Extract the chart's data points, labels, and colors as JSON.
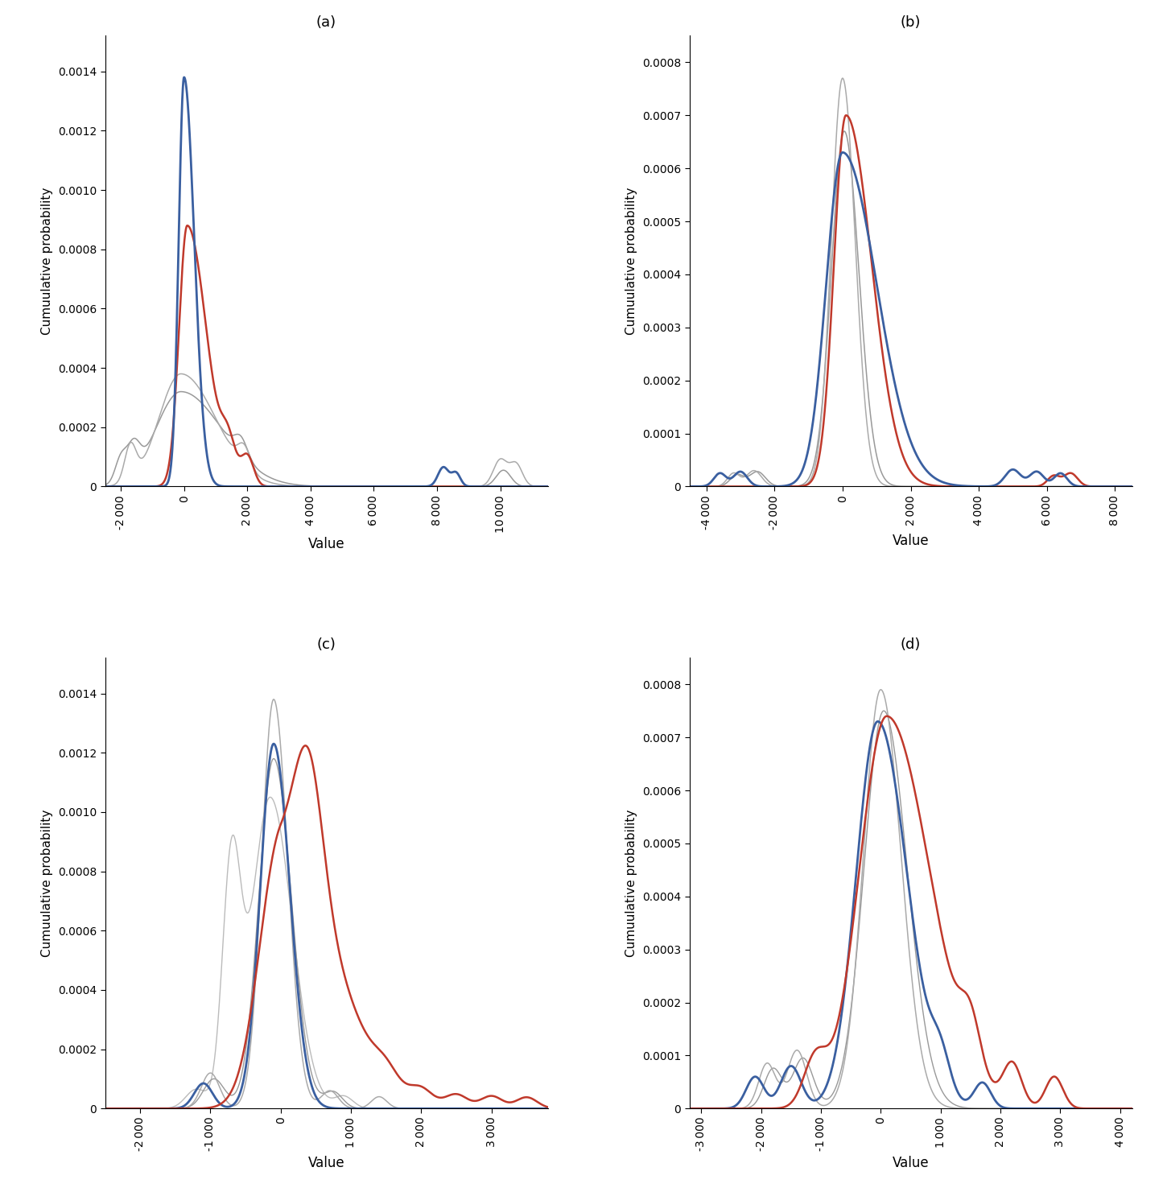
{
  "panel_labels": [
    "(a)",
    "(b)",
    "(c)",
    "(d)"
  ],
  "ylabel": "Cumuulative probability",
  "xlabel": "Value",
  "background_color": "#ffffff",
  "line_colors": {
    "blue": "#3a5fa0",
    "red": "#c0392b",
    "gray1": "#aaaaaa",
    "gray2": "#999999",
    "gray3": "#bbbbbb"
  },
  "panels": [
    {
      "id": "a",
      "xlim": [
        -2500,
        11500
      ],
      "ylim": [
        0,
        0.00152
      ],
      "xticks": [
        -2000,
        0,
        2000,
        4000,
        6000,
        8000,
        10000
      ],
      "yticks": [
        0,
        0.0002,
        0.0004,
        0.0006,
        0.0008,
        0.001,
        0.0012,
        0.0014
      ]
    },
    {
      "id": "b",
      "xlim": [
        -4500,
        8500
      ],
      "ylim": [
        0,
        0.00085
      ],
      "xticks": [
        -4000,
        -2000,
        0,
        2000,
        4000,
        6000,
        8000
      ],
      "yticks": [
        0,
        0.0001,
        0.0002,
        0.0003,
        0.0004,
        0.0005,
        0.0006,
        0.0007,
        0.0008
      ]
    },
    {
      "id": "c",
      "xlim": [
        -2500,
        3800
      ],
      "ylim": [
        0,
        0.00152
      ],
      "xticks": [
        -2000,
        -1000,
        0,
        1000,
        2000,
        3000
      ],
      "yticks": [
        0,
        0.0002,
        0.0004,
        0.0006,
        0.0008,
        0.001,
        0.0012,
        0.0014
      ]
    },
    {
      "id": "d",
      "xlim": [
        -3200,
        4200
      ],
      "ylim": [
        0,
        0.00085
      ],
      "xticks": [
        -3000,
        -2000,
        -1000,
        0,
        1000,
        2000,
        3000,
        4000
      ],
      "yticks": [
        0,
        0.0001,
        0.0002,
        0.0003,
        0.0004,
        0.0005,
        0.0006,
        0.0007,
        0.0008
      ]
    }
  ]
}
